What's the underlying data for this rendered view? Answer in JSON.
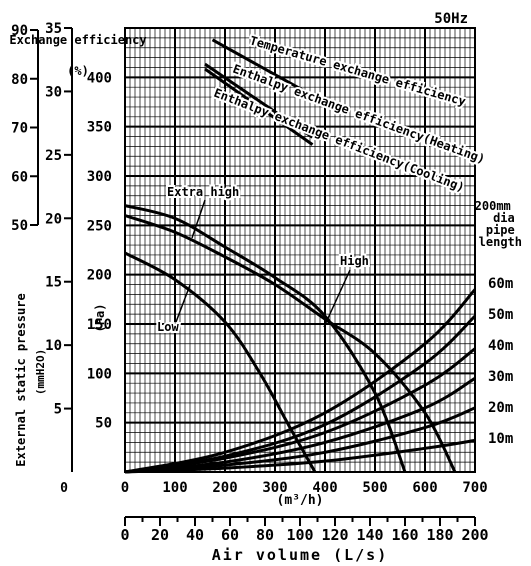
{
  "chart_data": {
    "type": "line",
    "title": "50Hz",
    "x_axis": {
      "unit": "(m³/h)",
      "range": [
        0,
        700
      ],
      "ticks": [
        "0",
        "100",
        "200",
        "300",
        "400",
        "500",
        "600",
        "700"
      ],
      "secondary_label": "Air volume (L/s)",
      "secondary_range": [
        0,
        200
      ],
      "secondary_ticks": [
        "0",
        "20",
        "40",
        "60",
        "80",
        "100",
        "120",
        "140",
        "160",
        "180",
        "200"
      ]
    },
    "y_axes": {
      "pa": {
        "unit": "(Pa)",
        "range": [
          0,
          450
        ],
        "ticks": [
          "50",
          "100",
          "150",
          "200",
          "250",
          "300",
          "350",
          "400"
        ]
      },
      "mmH2O": {
        "label": "External static pressure",
        "unit": "(mmH2O)",
        "range": [
          0,
          35
        ],
        "ticks": [
          "5",
          "10",
          "15",
          "20",
          "25",
          "30",
          "35"
        ]
      },
      "efficiency": {
        "label": "Exchange efficiency",
        "unit": "(%)",
        "range": [
          50,
          90
        ],
        "ticks": [
          "50",
          "60",
          "70",
          "80",
          "90"
        ]
      },
      "bottom_zero": "0"
    },
    "grid": true,
    "efficiency_curves": [
      {
        "name": "Temperature exchange efficiency",
        "x": [
          175,
          385
        ],
        "y": [
          88,
          76
        ]
      },
      {
        "name": "Enthalpy exchange efficiency(Heating)",
        "x": [
          160,
          375
        ],
        "y": [
          83,
          68
        ]
      },
      {
        "name": "Enthalpy exchange efficiency(Cooling)",
        "x": [
          160,
          375
        ],
        "y": [
          82,
          66.5
        ]
      }
    ],
    "fan_curves": [
      {
        "name": "Extra high",
        "x": [
          0,
          100,
          200,
          300,
          400,
          500,
          560
        ],
        "y": [
          270,
          257,
          228,
          197,
          158,
          80,
          0
        ]
      },
      {
        "name": "High",
        "x": [
          0,
          100,
          200,
          300,
          400,
          500,
          600,
          660
        ],
        "y": [
          260,
          243,
          218,
          190,
          155,
          120,
          60,
          0
        ]
      },
      {
        "name": "Low",
        "x": [
          0,
          100,
          200,
          270,
          330,
          380
        ],
        "y": [
          222,
          195,
          152,
          100,
          45,
          0
        ]
      }
    ],
    "pipe_curve_group": "200mm dia pipe length",
    "pipe_curves": [
      {
        "name": "60m",
        "x": [
          0,
          200,
          400,
          600,
          700
        ],
        "y": [
          0,
          20,
          60,
          130,
          185
        ]
      },
      {
        "name": "50m",
        "x": [
          0,
          200,
          400,
          600,
          700
        ],
        "y": [
          0,
          16,
          48,
          110,
          158
        ]
      },
      {
        "name": "40m",
        "x": [
          0,
          200,
          400,
          600,
          700
        ],
        "y": [
          0,
          14,
          40,
          88,
          125
        ]
      },
      {
        "name": "30m",
        "x": [
          0,
          200,
          400,
          600,
          700
        ],
        "y": [
          0,
          10,
          30,
          65,
          95
        ]
      },
      {
        "name": "20m",
        "x": [
          0,
          200,
          400,
          600,
          700
        ],
        "y": [
          0,
          7,
          20,
          45,
          65
        ]
      },
      {
        "name": "10m",
        "x": [
          0,
          200,
          400,
          600,
          700
        ],
        "y": [
          0,
          4,
          11,
          24,
          32
        ]
      }
    ]
  }
}
